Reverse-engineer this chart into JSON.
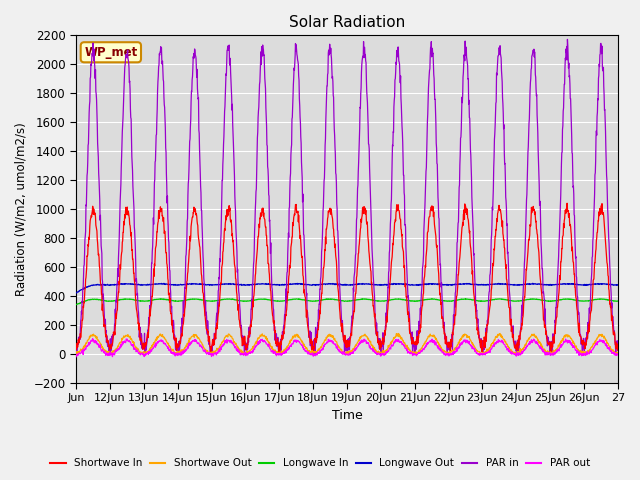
{
  "title": "Solar Radiation",
  "xlabel": "Time",
  "ylabel": "Radiation (W/m2, umol/m2/s)",
  "ylim": [
    -200,
    2200
  ],
  "x_tick_labels": [
    "Jun",
    "12Jun",
    "13Jun",
    "14Jun",
    "15Jun",
    "16Jun",
    "17Jun",
    "18Jun",
    "19Jun",
    "20Jun",
    "21Jun",
    "22Jun",
    "23Jun",
    "24Jun",
    "25Jun",
    "26Jun",
    "27"
  ],
  "fig_bg_color": "#f0f0f0",
  "plot_bg_color": "#dcdcdc",
  "annotation_text": "WP_met",
  "annotation_bg": "#ffffcc",
  "annotation_border": "#cc8800",
  "series": {
    "shortwave_in": {
      "color": "#ff0000",
      "label": "Shortwave In"
    },
    "shortwave_out": {
      "color": "#ffa500",
      "label": "Shortwave Out"
    },
    "longwave_in": {
      "color": "#00cc00",
      "label": "Longwave In"
    },
    "longwave_out": {
      "color": "#0000cc",
      "label": "Longwave Out"
    },
    "par_in": {
      "color": "#9900cc",
      "label": "PAR in"
    },
    "par_out": {
      "color": "#ff00ff",
      "label": "PAR out"
    }
  },
  "num_days": 16,
  "peak_hour": 12
}
